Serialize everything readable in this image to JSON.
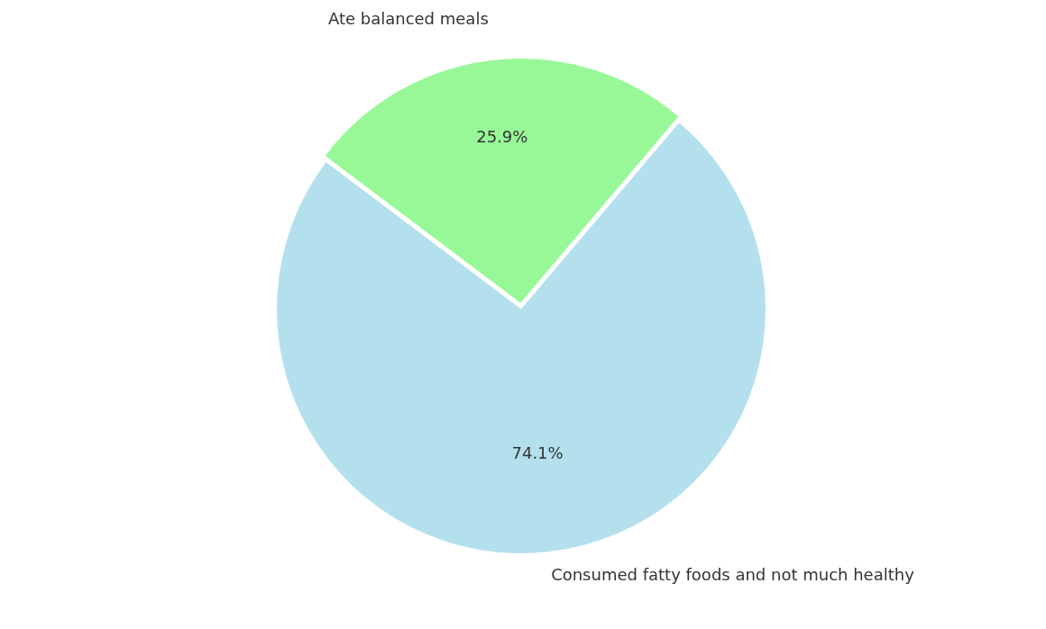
{
  "chart_data": {
    "type": "pie",
    "categories": [
      "Ate balanced meals",
      "Consumed fatty foods and not much healthy"
    ],
    "values": [
      25.9,
      74.1
    ],
    "colors": [
      "#98f898",
      "#b4e0ee"
    ],
    "value_labels": [
      "25.9%",
      "74.1%"
    ],
    "legend": false
  }
}
